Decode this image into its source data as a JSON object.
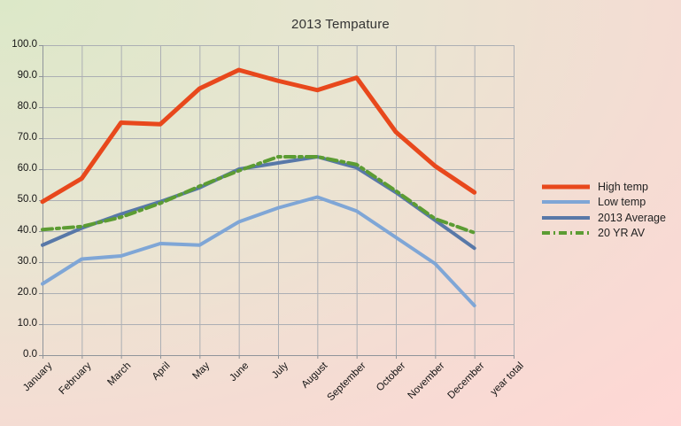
{
  "chart_data": {
    "type": "line",
    "title": "2013 Tempature",
    "categories": [
      "January",
      "February",
      "March",
      "April",
      "May",
      "June",
      "July",
      "August",
      "September",
      "October",
      "November",
      "December",
      "year total"
    ],
    "y_tick_labels": [
      "0.0",
      "10.0",
      "20.0",
      "30.0",
      "40.0",
      "50.0",
      "60.0",
      "70.0",
      "80.0",
      "90.0",
      "100.0"
    ],
    "ylim": [
      0,
      100
    ],
    "grid": true,
    "legend_position": "right",
    "series": [
      {
        "name": "High temp",
        "color": "#E8481C",
        "style": "solid",
        "width": 5,
        "values": [
          49.5,
          57,
          75,
          74.5,
          86,
          92,
          88.5,
          85.5,
          89.5,
          72,
          61,
          52.5
        ]
      },
      {
        "name": "Low temp",
        "color": "#7FA6D6",
        "style": "solid",
        "width": 4,
        "values": [
          23,
          31,
          32,
          36,
          35.5,
          43,
          47.5,
          51,
          46.5,
          38,
          29.5,
          16
        ]
      },
      {
        "name": "2013 Average",
        "color": "#5878A8",
        "style": "solid",
        "width": 4,
        "values": [
          35.5,
          41,
          45.5,
          49.5,
          54,
          60,
          62,
          64,
          60.5,
          52.5,
          43.5,
          34.5
        ]
      },
      {
        "name": "20 YR AV",
        "color": "#5C9C33",
        "style": "dash-dot",
        "width": 4,
        "values": [
          40.5,
          41.5,
          44.5,
          49,
          54.5,
          59.5,
          64,
          64,
          61.5,
          53,
          44,
          39.5
        ]
      }
    ]
  },
  "colors": {
    "background_top_left": "#DCE8C8",
    "background_mid": "#EDE4D2",
    "background_bottom_right": "#FFD7D5",
    "gridline": "#ACAFB4",
    "axis": "#8F949A",
    "text": "#141414"
  }
}
